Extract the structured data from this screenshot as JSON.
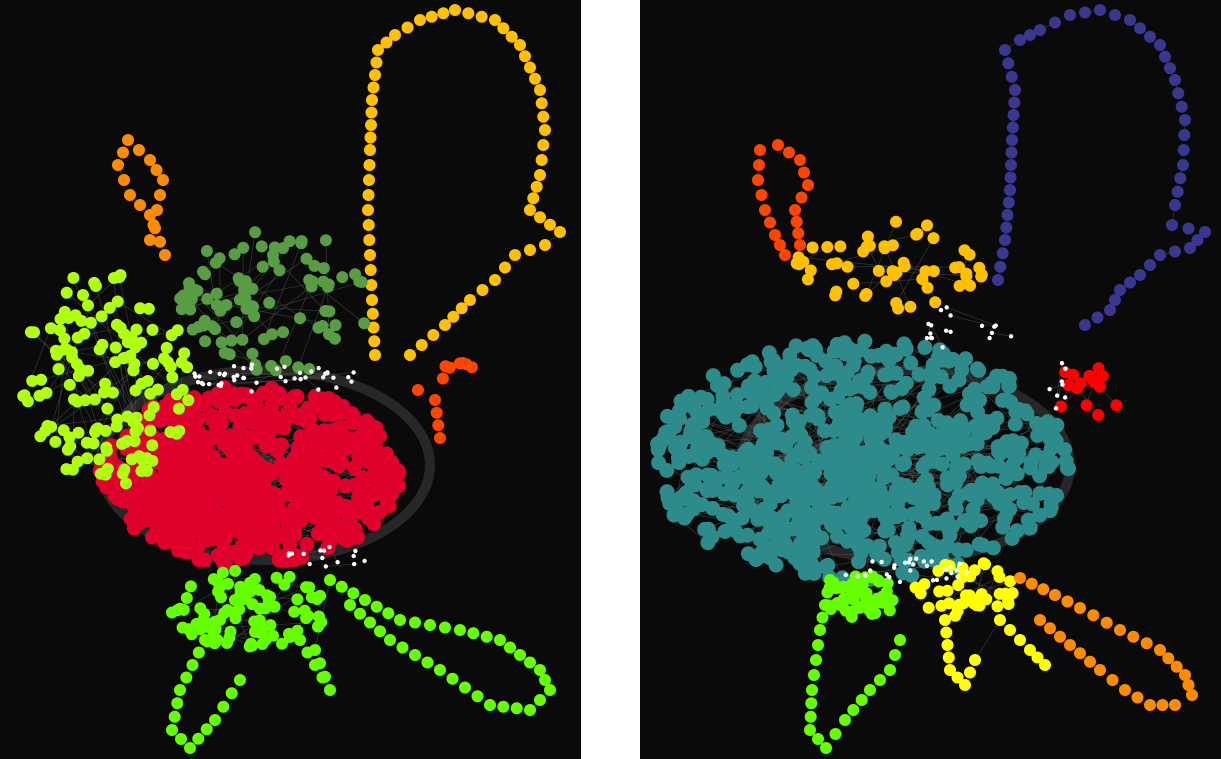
{
  "panels": [
    {
      "id": "left",
      "clusters": [
        {
          "label": "core",
          "color": "#e0002c"
        },
        {
          "label": "lower-left-lobe",
          "color": "#66ff00"
        },
        {
          "label": "upper-loop",
          "color": "#ffc000"
        },
        {
          "label": "left-lobe",
          "color": "#b0ff10"
        },
        {
          "label": "upper-middle-lobe",
          "color": "#589c44"
        },
        {
          "label": "upper-left-loop",
          "color": "#ff8c00"
        },
        {
          "label": "right-small-cluster",
          "color": "#ff4500"
        },
        {
          "label": "bridge-nodes",
          "color": "#ffffff"
        }
      ]
    },
    {
      "id": "right",
      "clusters": [
        {
          "label": "core",
          "color": "#2e8b8b"
        },
        {
          "label": "lower-left-lobe",
          "color": "#66ff00"
        },
        {
          "label": "lower-middle-cluster",
          "color": "#ffff00"
        },
        {
          "label": "lower-right-loop",
          "color": "#ff8c00"
        },
        {
          "label": "upper-loop",
          "color": "#3a3790"
        },
        {
          "label": "upper-left-loop",
          "color": "#ff4500"
        },
        {
          "label": "upper-middle-cluster",
          "color": "#ffc000"
        },
        {
          "label": "right-small-cluster",
          "color": "#ff0000"
        },
        {
          "label": "bridge-nodes",
          "color": "#ffffff"
        }
      ]
    }
  ]
}
